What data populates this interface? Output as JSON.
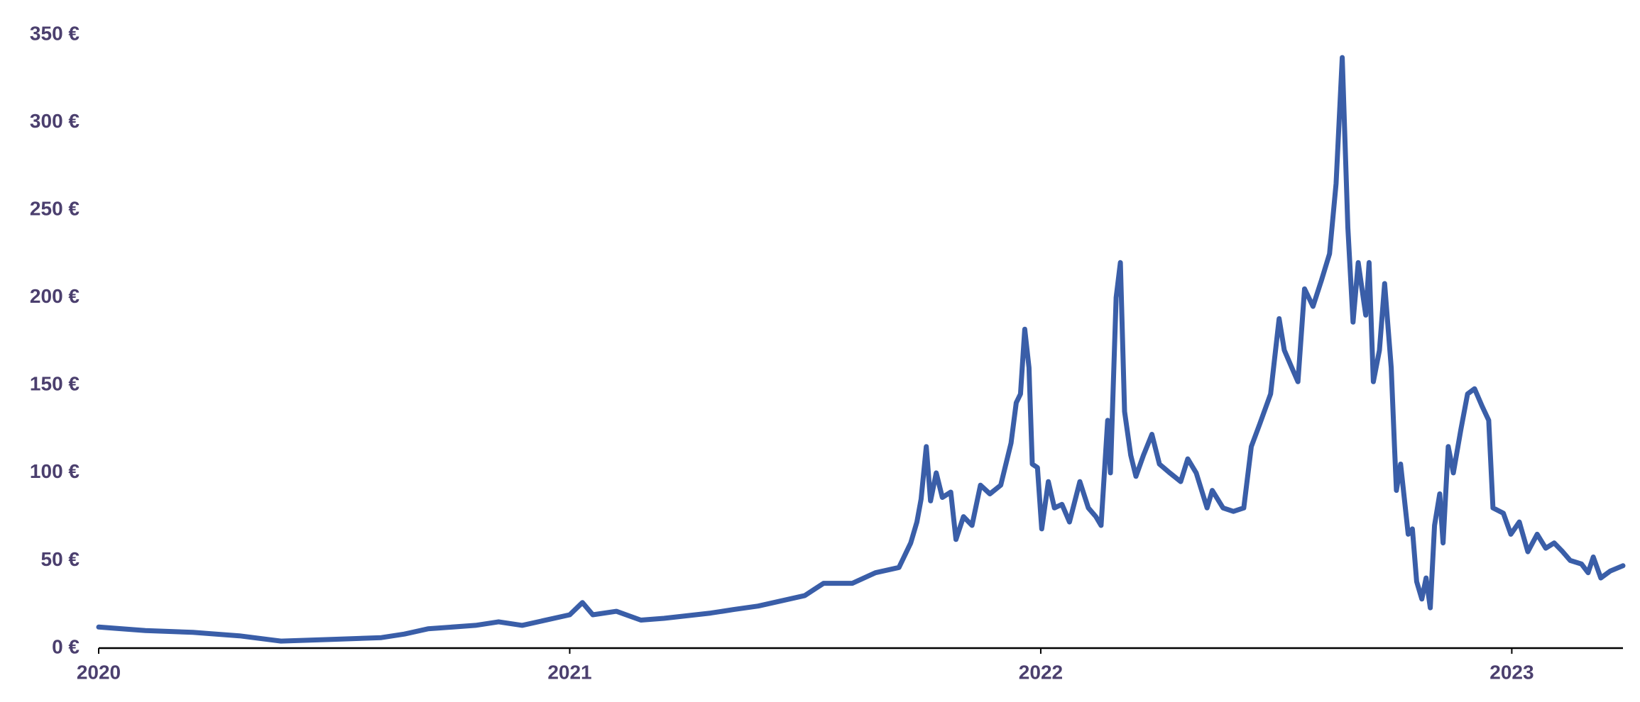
{
  "chart_data": {
    "type": "line",
    "x": [
      2020.0,
      2020.099,
      2020.2,
      2020.299,
      2020.387,
      2020.499,
      2020.6,
      2020.649,
      2020.699,
      2020.8,
      2020.849,
      2020.899,
      2021.0,
      2021.027,
      2021.049,
      2021.099,
      2021.151,
      2021.2,
      2021.299,
      2021.348,
      2021.4,
      2021.499,
      2021.539,
      2021.6,
      2021.649,
      2021.699,
      2021.724,
      2021.737,
      2021.746,
      2021.757,
      2021.766,
      2021.778,
      2021.791,
      2021.809,
      2021.82,
      2021.836,
      2021.854,
      2021.872,
      2021.892,
      2021.915,
      2021.937,
      2021.948,
      2021.957,
      2021.966,
      2021.975,
      2021.982,
      2021.993,
      2022.002,
      2022.016,
      2022.029,
      2022.045,
      2022.061,
      2022.083,
      2022.101,
      2022.117,
      2022.128,
      2022.142,
      2022.148,
      2022.16,
      2022.169,
      2022.178,
      2022.191,
      2022.202,
      2022.218,
      2022.236,
      2022.252,
      2022.274,
      2022.297,
      2022.312,
      2022.33,
      2022.353,
      2022.364,
      2022.387,
      2022.409,
      2022.431,
      2022.447,
      2022.465,
      2022.488,
      2022.506,
      2022.517,
      2022.533,
      2022.546,
      2022.56,
      2022.578,
      2022.596,
      2022.613,
      2022.627,
      2022.64,
      2022.652,
      2022.663,
      2022.674,
      2022.69,
      2022.697,
      2022.706,
      2022.719,
      2022.73,
      2022.744,
      2022.751,
      2022.755,
      2022.764,
      2022.78,
      2022.789,
      2022.798,
      2022.809,
      2022.818,
      2022.827,
      2022.836,
      2022.847,
      2022.854,
      2022.865,
      2022.876,
      2022.892,
      2022.906,
      2022.921,
      2022.937,
      2022.951,
      2022.96,
      2022.982,
      2022.998,
      2023.016,
      2023.034,
      2023.054,
      2023.072,
      2023.09,
      2023.108,
      2023.124,
      2023.148,
      2023.162,
      2023.173,
      2023.189,
      2023.209,
      2023.236
    ],
    "series": [
      {
        "color": "#3a5ea8",
        "values": [
          12,
          10,
          9,
          7,
          4,
          5,
          6,
          8,
          11,
          13,
          15,
          13,
          19,
          26,
          19,
          21,
          16,
          17,
          20,
          22,
          24,
          30,
          37,
          37,
          43,
          46,
          60,
          72,
          85,
          115,
          84,
          100,
          86,
          89,
          62,
          75,
          70,
          93,
          88,
          93,
          117,
          140,
          145,
          182,
          160,
          105,
          103,
          68,
          95,
          80,
          82,
          72,
          95,
          80,
          75,
          70,
          130,
          100,
          200,
          220,
          135,
          110,
          98,
          110,
          122,
          105,
          100,
          95,
          108,
          100,
          80,
          90,
          80,
          78,
          80,
          115,
          128,
          145,
          188,
          170,
          160,
          152,
          205,
          195,
          210,
          225,
          265,
          337,
          240,
          186,
          220,
          190,
          220,
          152,
          170,
          208,
          160,
          115,
          90,
          105,
          65,
          68,
          38,
          28,
          40,
          23,
          70,
          88,
          60,
          115,
          100,
          125,
          145,
          148,
          138,
          130,
          80,
          77,
          65,
          72,
          55,
          65,
          57,
          60,
          55,
          50,
          48,
          43,
          52,
          40,
          44,
          47
        ]
      }
    ],
    "xlim": [
      2020,
      2023.236
    ],
    "xticks": [
      2020,
      2021,
      2022,
      2023
    ],
    "ylim": [
      0,
      350
    ],
    "yticks": [
      {
        "value": 0,
        "label": "0 €"
      },
      {
        "value": 50,
        "label": "50 €"
      },
      {
        "value": 100,
        "label": "100 €"
      },
      {
        "value": 150,
        "label": "150 €"
      },
      {
        "value": 200,
        "label": "200 €"
      },
      {
        "value": 250,
        "label": "250 €"
      },
      {
        "value": 300,
        "label": "300 €"
      },
      {
        "value": 350,
        "label": "350 €"
      }
    ],
    "grid": false
  }
}
